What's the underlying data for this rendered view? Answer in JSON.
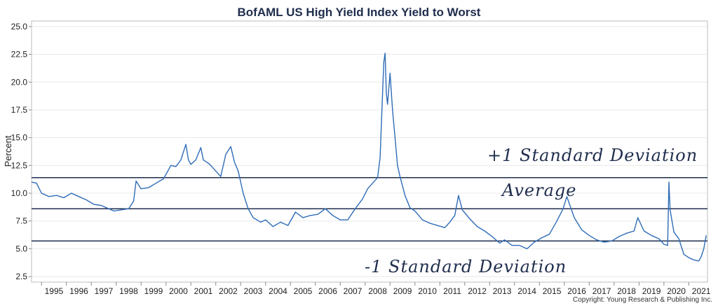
{
  "chart_data": {
    "type": "line",
    "title": "BofAML US High Yield Index Yield to Worst",
    "xlabel": "",
    "ylabel": "Percent",
    "xlim": [
      1994.6,
      2021.75
    ],
    "ylim": [
      2.0,
      25.5
    ],
    "yticks": [
      2.5,
      5.0,
      7.5,
      10.0,
      12.5,
      15.0,
      17.5,
      20.0,
      22.5,
      25.0
    ],
    "ytick_labels": [
      "2.5",
      "5.0",
      "7.5",
      "10.0",
      "12.5",
      "15.0",
      "17.5",
      "20.0",
      "22.5",
      "25.0"
    ],
    "xtick_labels": [
      "1995",
      "1996",
      "1997",
      "1998",
      "1999",
      "2000",
      "2001",
      "2002",
      "2003",
      "2004",
      "2005",
      "2006",
      "2007",
      "2008",
      "2009",
      "2010",
      "2011",
      "2012",
      "2013",
      "2014",
      "2015",
      "2016",
      "2017",
      "2018",
      "2019",
      "2020",
      "2021"
    ],
    "grid": "horizontal",
    "colors": {
      "series": "#2f6cb8",
      "reference_lines": "#1f2d4d",
      "grid": "#e8e8e8"
    },
    "series": [
      {
        "x": [
          1994.6,
          1994.8,
          1995.0,
          1995.3,
          1995.6,
          1995.9,
          1996.2,
          1996.5,
          1996.8,
          1997.1,
          1997.4,
          1997.7,
          1997.9,
          1998.2,
          1998.5,
          1998.7,
          1998.8,
          1999.0,
          1999.3,
          1999.6,
          1999.9,
          2000.2,
          2000.4,
          2000.6,
          2000.8,
          2000.9,
          2001.0,
          2001.2,
          2001.4,
          2001.5,
          2001.7,
          2001.8,
          2002.0,
          2002.2,
          2002.4,
          2002.6,
          2002.75,
          2002.9,
          2003.1,
          2003.3,
          2003.5,
          2003.8,
          2004.0,
          2004.3,
          2004.6,
          2004.9,
          2005.2,
          2005.5,
          2005.8,
          2006.1,
          2006.4,
          2006.7,
          2007.0,
          2007.3,
          2007.6,
          2007.9,
          2008.1,
          2008.3,
          2008.5,
          2008.6,
          2008.7,
          2008.75,
          2008.8,
          2008.85,
          2008.9,
          2009.0,
          2009.1,
          2009.2,
          2009.3,
          2009.4,
          2009.6,
          2009.8,
          2010.0,
          2010.3,
          2010.6,
          2010.9,
          2011.2,
          2011.4,
          2011.6,
          2011.75,
          2011.9,
          2012.2,
          2012.5,
          2012.8,
          2013.1,
          2013.4,
          2013.6,
          2013.9,
          2014.2,
          2014.5,
          2014.8,
          2015.1,
          2015.4,
          2015.7,
          2015.95,
          2016.1,
          2016.4,
          2016.7,
          2017.0,
          2017.3,
          2017.6,
          2017.9,
          2018.2,
          2018.5,
          2018.8,
          2018.95,
          2019.2,
          2019.5,
          2019.8,
          2020.0,
          2020.15,
          2020.2,
          2020.25,
          2020.4,
          2020.6,
          2020.8,
          2021.0,
          2021.2,
          2021.4,
          2021.5,
          2021.6,
          2021.7
        ],
        "y": [
          11.0,
          10.9,
          10.0,
          9.7,
          9.8,
          9.6,
          10.0,
          9.7,
          9.4,
          9.0,
          8.9,
          8.6,
          8.4,
          8.5,
          8.6,
          9.3,
          11.1,
          10.4,
          10.5,
          10.9,
          11.3,
          12.5,
          12.4,
          13.0,
          14.4,
          13.0,
          12.6,
          13.0,
          14.1,
          13.0,
          12.7,
          12.5,
          12.0,
          11.5,
          13.5,
          14.2,
          12.8,
          12.0,
          10.0,
          8.6,
          7.8,
          7.4,
          7.6,
          7.0,
          7.4,
          7.1,
          8.3,
          7.8,
          8.0,
          8.1,
          8.6,
          8.0,
          7.6,
          7.6,
          8.6,
          9.5,
          10.4,
          10.9,
          11.4,
          13.2,
          19.0,
          21.8,
          22.6,
          19.0,
          18.0,
          20.8,
          17.5,
          15.0,
          12.5,
          11.5,
          9.8,
          8.7,
          8.4,
          7.6,
          7.3,
          7.1,
          6.9,
          7.4,
          8.0,
          9.8,
          8.5,
          7.7,
          7.0,
          6.6,
          6.1,
          5.5,
          5.8,
          5.3,
          5.3,
          5.0,
          5.6,
          6.0,
          6.3,
          7.5,
          8.6,
          9.7,
          7.8,
          6.7,
          6.2,
          5.8,
          5.6,
          5.7,
          6.1,
          6.4,
          6.6,
          7.8,
          6.6,
          6.2,
          5.9,
          5.4,
          5.3,
          11.0,
          8.5,
          6.5,
          5.9,
          4.5,
          4.2,
          4.0,
          3.9,
          4.3,
          5.0,
          6.2
        ]
      }
    ],
    "reference_lines": [
      {
        "label": "+1 Standard Deviation",
        "value": 11.4
      },
      {
        "label": "Average",
        "value": 8.6
      },
      {
        "label": "-1 Standard Deviation",
        "value": 5.7
      }
    ]
  },
  "footer": {
    "copyright": "Copyright: Young Research & Publishing Inc."
  }
}
